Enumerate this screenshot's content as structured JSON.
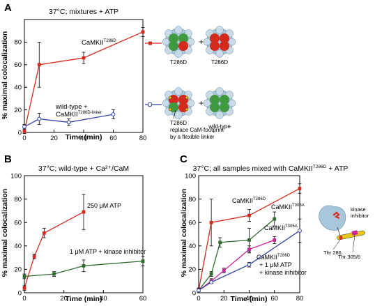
{
  "panels": {
    "A": {
      "letter": "A",
      "title": "37°C; mixtures + ATP",
      "diagram": {
        "top_left_label": "T286D",
        "top_right_label": "T286D",
        "bottom_left_label_1": "T286D",
        "bottom_left_label_2": "replace CaM-footprint",
        "bottom_left_label_3": "by a flexible linker",
        "bottom_right_label": "wild-type",
        "plus": "+"
      }
    },
    "B": {
      "letter": "B",
      "title": "37°C; wild-type + Ca²⁺/CaM"
    },
    "C": {
      "letter": "C",
      "title_main": "37°C; all samples mixed with CaMKII",
      "title_sup": "T286D",
      "title_tail": " + ATP",
      "diagram": {
        "kinase_inhibitor_1": "kinase",
        "kinase_inhibitor_2": "inhibitor",
        "thr286": "Thr 286",
        "thr305": "Thr 305/6"
      }
    }
  },
  "colors": {
    "red": "#d42a1e",
    "green": "#2e6b2e",
    "blue": "#3344a8",
    "magenta": "#cc2299",
    "black": "#000000"
  },
  "chart_data": [
    {
      "panel": "A",
      "type": "line",
      "xlabel": "Time (min)",
      "ylabel": "% maximal colocalization",
      "xlim": [
        0,
        80
      ],
      "ylim": [
        0,
        100
      ],
      "xticks": [
        0,
        20,
        40,
        60,
        80
      ],
      "yticks": [
        0,
        20,
        40,
        60,
        80
      ],
      "series": [
        {
          "name": "CaMKII",
          "name_sup": "T286D",
          "color": "#d42a1e",
          "marker": "square",
          "x": [
            0,
            10,
            40,
            80
          ],
          "y": [
            1,
            60,
            66,
            89
          ],
          "err": [
            2,
            20,
            5,
            4
          ]
        },
        {
          "name": "wild-type +",
          "name_line2": "CaMKII",
          "name_sup": "T286D-linker",
          "color": "#3344a8",
          "marker": "circle",
          "x": [
            0,
            10,
            30,
            60
          ],
          "y": [
            5,
            12,
            9,
            16
          ],
          "err": [
            2,
            5,
            3,
            4
          ]
        }
      ]
    },
    {
      "panel": "B",
      "type": "line",
      "xlabel": "Time (min)",
      "ylabel": "% maximal colocalization",
      "xlim": [
        0,
        60
      ],
      "ylim": [
        0,
        100
      ],
      "xticks": [
        0,
        20,
        40,
        60
      ],
      "yticks": [
        0,
        20,
        40,
        60,
        80,
        100
      ],
      "series": [
        {
          "name": "250 μM ATP",
          "color": "#d42a1e",
          "marker": "square",
          "x": [
            0,
            5,
            10,
            30
          ],
          "y": [
            4,
            31,
            51,
            69
          ],
          "err": [
            2,
            2,
            4,
            15
          ]
        },
        {
          "name": "1 μM ATP + kinase inhibitor",
          "color": "#2e6b2e",
          "marker": "square",
          "x": [
            0,
            15,
            30,
            60
          ],
          "y": [
            14,
            16,
            23,
            27
          ],
          "err": [
            2,
            2,
            5,
            4
          ]
        }
      ]
    },
    {
      "panel": "C",
      "type": "line",
      "xlabel": "Time (min)",
      "ylabel": "% maximal colocalization",
      "xlim": [
        0,
        80
      ],
      "ylim": [
        0,
        100
      ],
      "xticks": [
        0,
        20,
        40,
        60,
        80
      ],
      "yticks": [
        0,
        20,
        40,
        60,
        80,
        100
      ],
      "series": [
        {
          "name": "CaMKII",
          "name_sup": "T286D",
          "color": "#d42a1e",
          "marker": "square",
          "x": [
            0,
            10,
            40,
            80
          ],
          "y": [
            2,
            60,
            66,
            89
          ],
          "err": [
            2,
            20,
            5,
            4
          ]
        },
        {
          "name": "CaMKII",
          "name_sup": "T306A",
          "color": "#2e6b2e",
          "marker": "square",
          "x": [
            0,
            10,
            17,
            40,
            60
          ],
          "y": [
            2,
            16,
            43,
            45,
            63
          ],
          "err": [
            2,
            2,
            4,
            10,
            6
          ]
        },
        {
          "name": "CaMKII",
          "name_sup": "T305A",
          "color": "#cc2299",
          "marker": "square",
          "x": [
            0,
            10,
            20,
            40,
            60
          ],
          "y": [
            2,
            10,
            19,
            37,
            45
          ],
          "err": [
            2,
            2,
            2,
            3,
            3
          ]
        },
        {
          "name": "CaMKII",
          "name_sup": "T286D",
          "name_line2": "+ 1 μM ATP",
          "name_line3": "+ kinase inhibitor",
          "color": "#3344a8",
          "marker": "circle",
          "x": [
            0,
            10,
            40,
            80
          ],
          "y": [
            2,
            9,
            24,
            53
          ],
          "err": [
            1,
            1,
            2,
            10
          ]
        }
      ]
    }
  ]
}
